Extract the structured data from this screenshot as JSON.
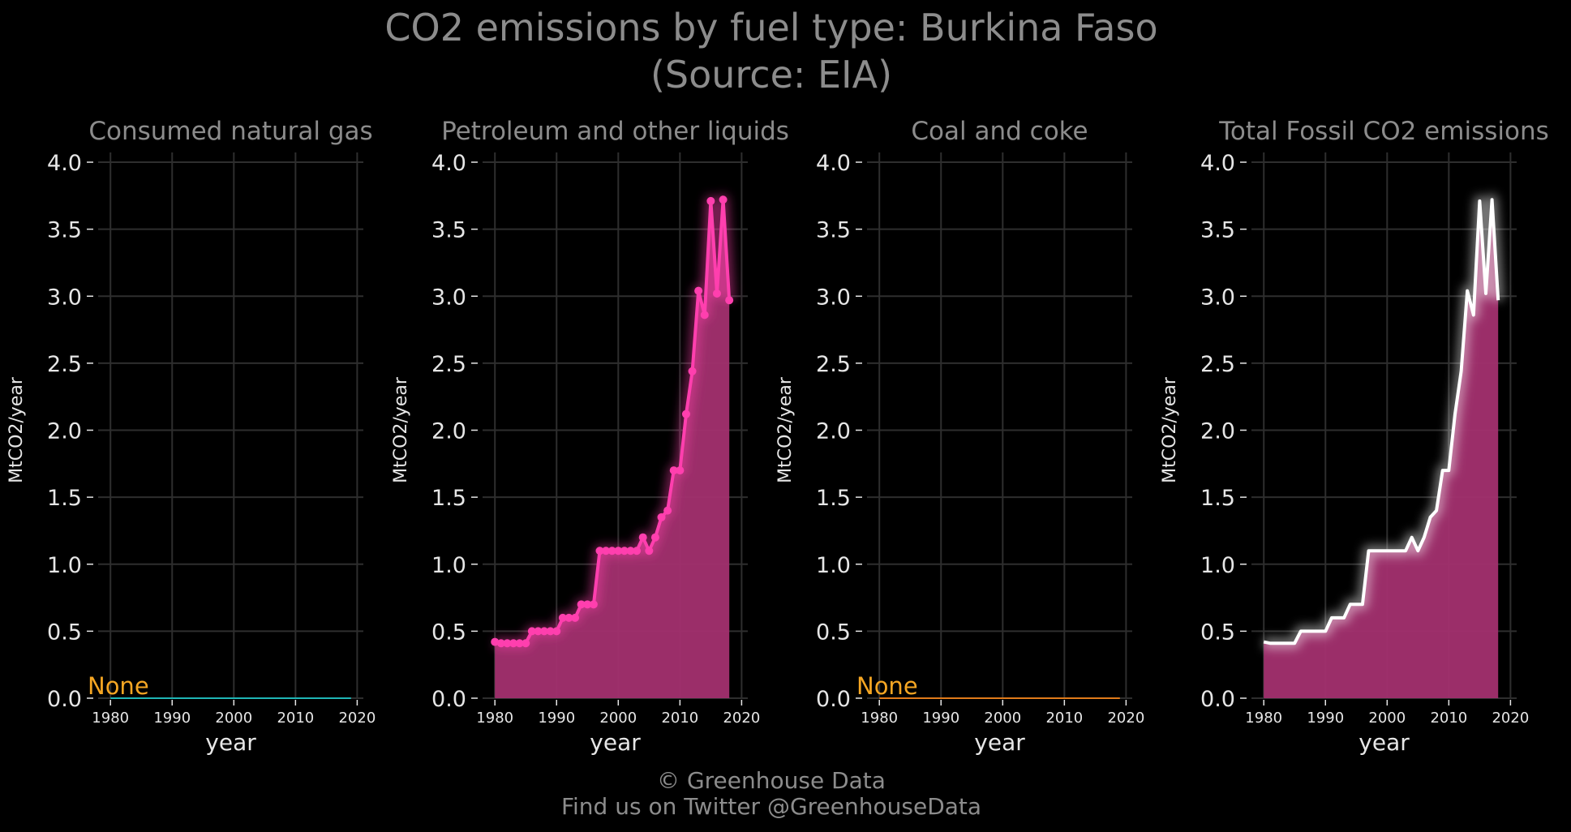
{
  "figure": {
    "title_line1": "CO2 emissions by fuel type: Burkina Faso",
    "title_line2": "(Source: EIA)",
    "footer_line1": "© Greenhouse Data",
    "footer_line2": "Find us on Twitter @GreenhouseData"
  },
  "colors": {
    "background": "#000000",
    "title_text": "#8c8c8c",
    "tick_text": "#e6e6e6",
    "grid": "#2e2e2e",
    "none_label": "#f5a623",
    "gas_line": "#1fb5b5",
    "coal_line": "#e07b1a",
    "petroleum_line": "#ff3fae",
    "petroleum_fill": "#a3306f",
    "total_line": "#ffffff",
    "total_fill": "#a3306f"
  },
  "chart_data": [
    {
      "type": "line",
      "title": "Consumed natural gas",
      "xlabel": "year",
      "ylabel": "MtCO2/year",
      "xlim": [
        1978,
        2021
      ],
      "ylim": [
        0,
        4.0
      ],
      "x_ticks": [
        1980,
        1990,
        2000,
        2010,
        2020
      ],
      "y_ticks": [
        "0.0",
        "0.5",
        "1.0",
        "1.5",
        "2.0",
        "2.5",
        "3.0",
        "3.5",
        "4.0"
      ],
      "annotation": "None",
      "grid": true,
      "series": [
        {
          "x": [
            1980,
            2019
          ],
          "values": [
            0,
            0
          ],
          "fill": false,
          "markers": false
        }
      ]
    },
    {
      "type": "area",
      "title": "Petroleum and other liquids",
      "xlabel": "year",
      "ylabel": "MtCO2/year",
      "xlim": [
        1978,
        2021
      ],
      "ylim": [
        0,
        4.0
      ],
      "x_ticks": [
        1980,
        1990,
        2000,
        2010,
        2020
      ],
      "y_ticks": [
        "0.0",
        "0.5",
        "1.0",
        "1.5",
        "2.0",
        "2.5",
        "3.0",
        "3.5",
        "4.0"
      ],
      "grid": true,
      "series": [
        {
          "x": [
            1980,
            1981,
            1982,
            1983,
            1984,
            1985,
            1986,
            1987,
            1988,
            1989,
            1990,
            1991,
            1992,
            1993,
            1994,
            1995,
            1996,
            1997,
            1998,
            1999,
            2000,
            2001,
            2002,
            2003,
            2004,
            2005,
            2006,
            2007,
            2008,
            2009,
            2010,
            2011,
            2012,
            2013,
            2014,
            2015,
            2016,
            2017,
            2018
          ],
          "values": [
            0.42,
            0.41,
            0.41,
            0.41,
            0.41,
            0.41,
            0.5,
            0.5,
            0.5,
            0.5,
            0.5,
            0.6,
            0.6,
            0.6,
            0.7,
            0.7,
            0.7,
            1.1,
            1.1,
            1.1,
            1.1,
            1.1,
            1.1,
            1.1,
            1.2,
            1.1,
            1.2,
            1.35,
            1.4,
            1.7,
            1.7,
            2.12,
            2.44,
            3.04,
            2.86,
            3.71,
            3.02,
            3.72,
            2.97
          ],
          "fill": true,
          "markers": true
        }
      ]
    },
    {
      "type": "line",
      "title": "Coal and coke",
      "xlabel": "year",
      "ylabel": "MtCO2/year",
      "xlim": [
        1978,
        2021
      ],
      "ylim": [
        0,
        4.0
      ],
      "x_ticks": [
        1980,
        1990,
        2000,
        2010,
        2020
      ],
      "y_ticks": [
        "0.0",
        "0.5",
        "1.0",
        "1.5",
        "2.0",
        "2.5",
        "3.0",
        "3.5",
        "4.0"
      ],
      "annotation": "None",
      "grid": true,
      "series": [
        {
          "x": [
            1980,
            2019
          ],
          "values": [
            0,
            0
          ],
          "fill": false,
          "markers": false
        }
      ]
    },
    {
      "type": "area",
      "title": "Total Fossil CO2 emissions",
      "xlabel": "year",
      "ylabel": "MtCO2/year",
      "xlim": [
        1978,
        2021
      ],
      "ylim": [
        0,
        4.0
      ],
      "x_ticks": [
        1980,
        1990,
        2000,
        2010,
        2020
      ],
      "y_ticks": [
        "0.0",
        "0.5",
        "1.0",
        "1.5",
        "2.0",
        "2.5",
        "3.0",
        "3.5",
        "4.0"
      ],
      "grid": true,
      "series": [
        {
          "x": [
            1980,
            1981,
            1982,
            1983,
            1984,
            1985,
            1986,
            1987,
            1988,
            1989,
            1990,
            1991,
            1992,
            1993,
            1994,
            1995,
            1996,
            1997,
            1998,
            1999,
            2000,
            2001,
            2002,
            2003,
            2004,
            2005,
            2006,
            2007,
            2008,
            2009,
            2010,
            2011,
            2012,
            2013,
            2014,
            2015,
            2016,
            2017,
            2018
          ],
          "values": [
            0.42,
            0.41,
            0.41,
            0.41,
            0.41,
            0.41,
            0.5,
            0.5,
            0.5,
            0.5,
            0.5,
            0.6,
            0.6,
            0.6,
            0.7,
            0.7,
            0.7,
            1.1,
            1.1,
            1.1,
            1.1,
            1.1,
            1.1,
            1.1,
            1.2,
            1.1,
            1.2,
            1.35,
            1.4,
            1.7,
            1.7,
            2.12,
            2.44,
            3.04,
            2.86,
            3.71,
            3.02,
            3.72,
            2.97
          ],
          "fill": true,
          "markers": false
        }
      ]
    }
  ]
}
